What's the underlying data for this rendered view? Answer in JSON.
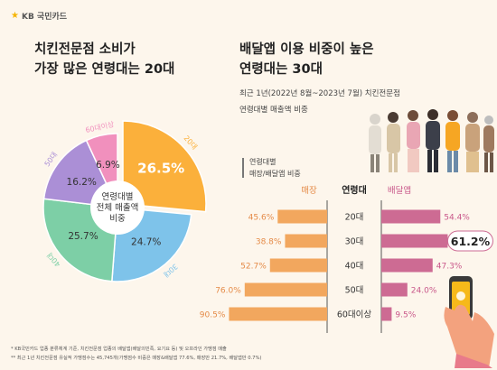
{
  "brand": {
    "logo_text": "KB 국민카드"
  },
  "left_title": {
    "line1": "치킨전문점 소비가",
    "line2": "가장 많은 연령대는 20대"
  },
  "right_title": {
    "line1": "배달앱 이용 비중이 높은",
    "line2": "연령대는 30대"
  },
  "right_subtitle": {
    "period": "최근 1년(2022년 8월~2023년 7월) 치킨전문점",
    "metric": "연령대별 매출액 비중"
  },
  "legend_box": {
    "line1": "연령대별",
    "line2": "매장/배달앱 비중"
  },
  "notes": [
    "* KB국민카드 업종 분류체계 기준, 치킨전문점 업종의 배달앱(배달의민족, 요기요 등) 및 오프라인 가맹점 매출",
    "** 최근 1년 치킨전문점 유실적 가맹점수는 45,745개(가맹점수 비중은 매장&배달앱 77.6%, 매장만 21.7%, 배달앱만 0.7%)"
  ],
  "colors": {
    "background": "#fdf6ec",
    "bar_store": "#f2a75e",
    "bar_app": "#cd6b93",
    "text_store": "#e58b48",
    "text_app": "#c9588a"
  },
  "chart_data": [
    {
      "type": "pie",
      "title": "",
      "center_label": [
        "연령대별",
        "전체 매출액",
        "비중"
      ],
      "slices": [
        {
          "label": "20대",
          "value": 26.5,
          "display": "26.5%",
          "color": "#fbb03b"
        },
        {
          "label": "30대",
          "value": 24.7,
          "display": "24.7%",
          "color": "#7ec3ea"
        },
        {
          "label": "40대",
          "value": 25.7,
          "display": "25.7%",
          "color": "#7dcfa6"
        },
        {
          "label": "50대",
          "value": 16.2,
          "display": "16.2%",
          "color": "#ab8fd6"
        },
        {
          "label": "60대이상",
          "value": 6.9,
          "display": "6.9%",
          "color": "#f190bd"
        }
      ]
    },
    {
      "type": "bar",
      "orientation": "horizontal-butterfly",
      "categories": [
        "20대",
        "30대",
        "40대",
        "50대",
        "60대이상"
      ],
      "category_header": "연령대",
      "series": [
        {
          "name": "매장",
          "values": [
            45.6,
            38.8,
            52.7,
            76.0,
            90.5
          ],
          "display": [
            "45.6%",
            "38.8%",
            "52.7%",
            "76.0%",
            "90.5%"
          ]
        },
        {
          "name": "배달앱",
          "values": [
            54.4,
            61.2,
            47.3,
            24.0,
            9.5
          ],
          "display": [
            "54.4%",
            "61.2%",
            "47.3%",
            "24.0%",
            "9.5%"
          ]
        }
      ],
      "highlight": {
        "series": "배달앱",
        "category": "30대"
      },
      "xlim": [
        0,
        100
      ]
    }
  ]
}
